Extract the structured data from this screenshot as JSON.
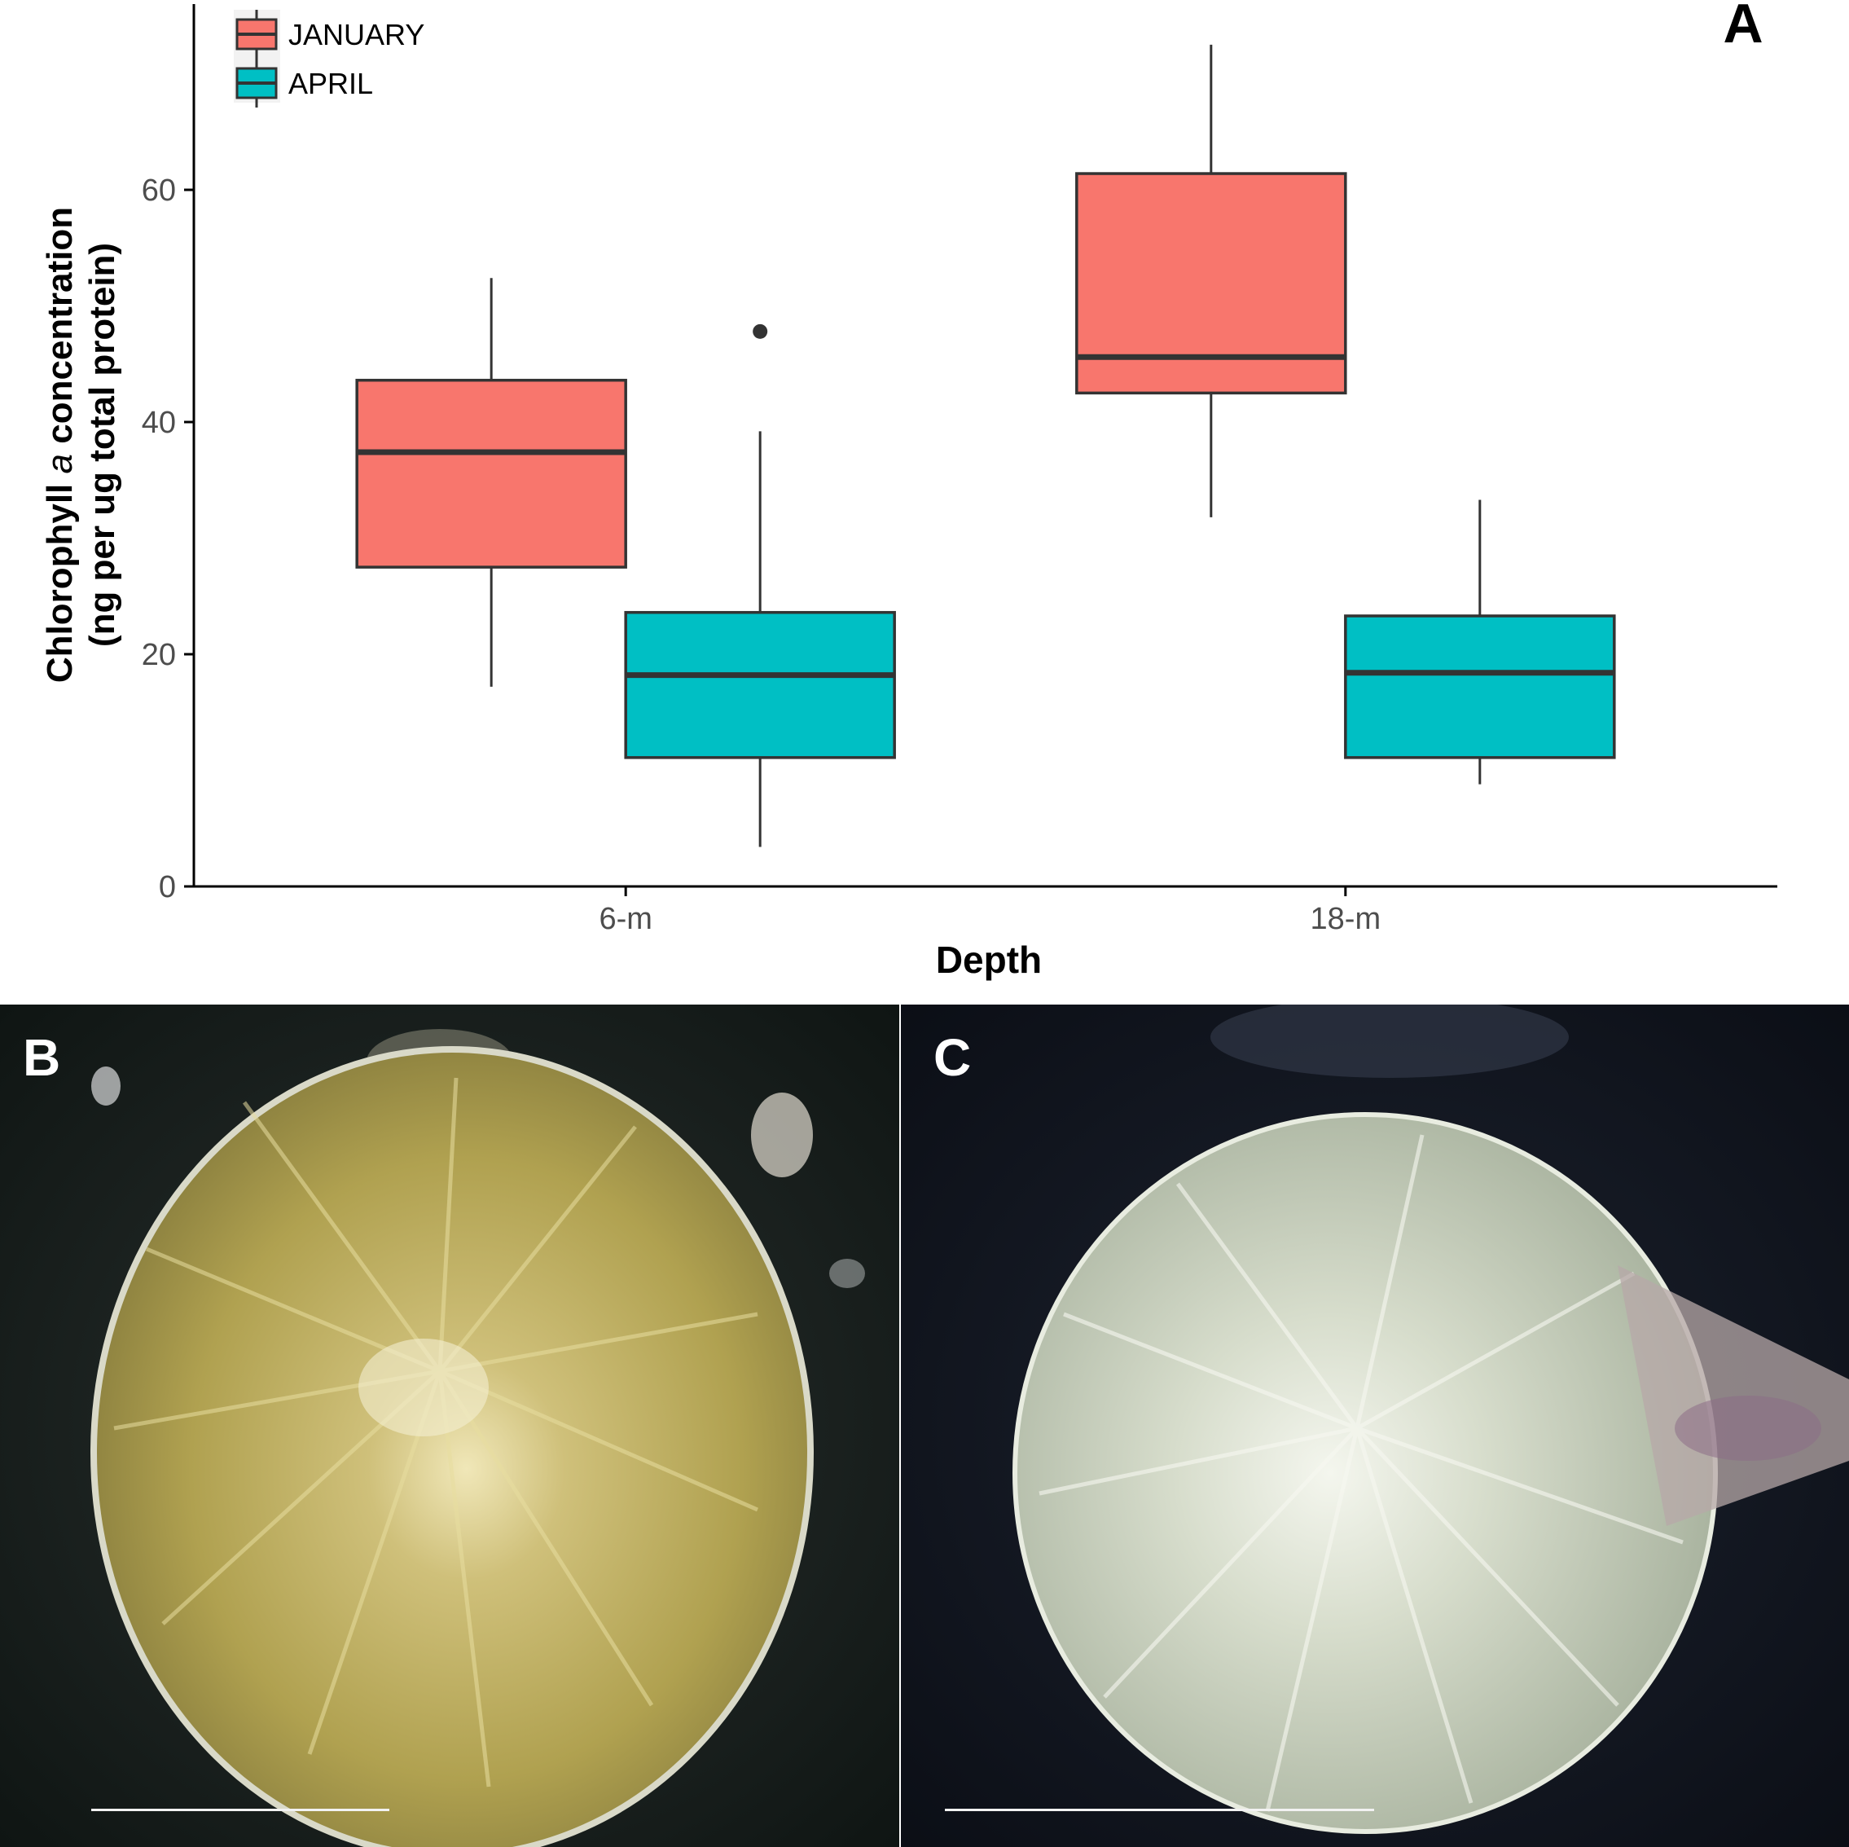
{
  "chart_data": {
    "type": "boxplot",
    "panel_label": "A",
    "xlabel": "Depth",
    "ylabel_line1_pre": "Chlorophyll ",
    "ylabel_line1_italic": "a",
    "ylabel_line1_post": " concentration",
    "ylabel_line2": "(ng per ug total protein)",
    "categories": [
      "6-m",
      "18-m"
    ],
    "ylim": [
      0,
      76
    ],
    "yticks": [
      0,
      20,
      40,
      60
    ],
    "legend_position": "top-left",
    "series": [
      {
        "name": "JANUARY",
        "color": "#F8766D",
        "boxes": [
          {
            "category": "6-m",
            "whisker_low": 17.2,
            "q1": 27.5,
            "median": 37.4,
            "q3": 43.6,
            "whisker_high": 52.4,
            "outliers": []
          },
          {
            "category": "18-m",
            "whisker_low": 31.8,
            "q1": 42.5,
            "median": 45.6,
            "q3": 61.4,
            "whisker_high": 72.5,
            "outliers": []
          }
        ]
      },
      {
        "name": "APRIL",
        "color": "#00BFC4",
        "boxes": [
          {
            "category": "6-m",
            "whisker_low": 3.4,
            "q1": 11.1,
            "median": 18.2,
            "q3": 23.6,
            "whisker_high": 39.2,
            "outliers": [
              47.8
            ]
          },
          {
            "category": "18-m",
            "whisker_low": 8.8,
            "q1": 11.1,
            "median": 18.4,
            "q3": 23.3,
            "whisker_high": 33.3,
            "outliers": []
          }
        ]
      }
    ]
  },
  "photos": [
    {
      "panel_label": "B"
    },
    {
      "panel_label": "C"
    }
  ]
}
